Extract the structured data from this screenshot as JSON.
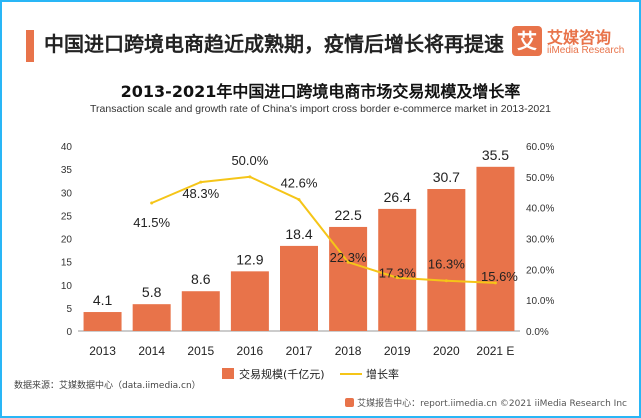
{
  "header": {
    "headline": "中国进口跨境电商趋近成熟期，疫情后增长将再提速"
  },
  "logo": {
    "mark": "艾",
    "name_cn": "艾媒咨询",
    "name_en": "iiMedia Research"
  },
  "source": "数据来源：艾媒数据中心（data.iimedia.cn）",
  "footer": "艾媒报告中心：report.iimedia.cn  ©2021  iiMedia Research  Inc",
  "colors": {
    "bar": "#e8734a",
    "line": "#f5c518",
    "accent": "#e8734a",
    "frame": "#29b6f6"
  },
  "chart_data": {
    "type": "bar",
    "title": "2013-2021年中国进口跨境电商市场交易规模及增长率",
    "subtitle": "Transaction scale and growth rate of China's import cross border e-commerce market in 2013-2021",
    "categories": [
      "2013",
      "2014",
      "2015",
      "2016",
      "2017",
      "2018",
      "2019",
      "2020",
      "2021 E"
    ],
    "series": [
      {
        "name": "交易规模(千亿元)",
        "type": "bar",
        "axis": "left",
        "values": [
          4.1,
          5.8,
          8.6,
          12.9,
          18.4,
          22.5,
          26.4,
          30.7,
          35.5
        ],
        "labels": [
          "4.1",
          "5.8",
          "8.6",
          "12.9",
          "18.4",
          "22.5",
          "26.4",
          "30.7",
          "35.5"
        ]
      },
      {
        "name": "增长率",
        "type": "line",
        "axis": "right",
        "values": [
          null,
          41.5,
          48.3,
          50.0,
          42.6,
          22.3,
          17.3,
          16.3,
          15.6
        ],
        "labels": [
          "",
          "41.5%",
          "48.3%",
          "50.0%",
          "42.6%",
          "22.3%",
          "17.3%",
          "16.3%",
          "15.6%"
        ]
      }
    ],
    "y_left": {
      "min": 0,
      "max": 40,
      "ticks": [
        "0",
        "5",
        "10",
        "15",
        "20",
        "25",
        "30",
        "35",
        "40"
      ]
    },
    "y_right": {
      "min": 0,
      "max": 60,
      "ticks": [
        "0.0%",
        "10.0%",
        "20.0%",
        "30.0%",
        "40.0%",
        "50.0%",
        "60.0%"
      ]
    },
    "grid": false,
    "legend_position": "bottom"
  }
}
